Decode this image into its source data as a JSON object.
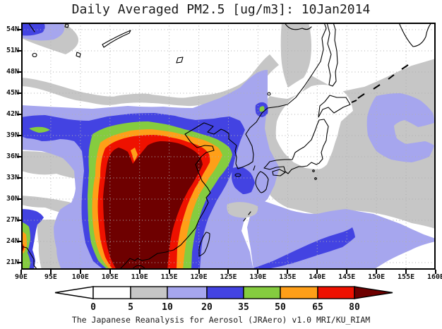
{
  "title": "Daily Averaged PM2.5 [ug/m3]: 10Jan2014",
  "caption": "The Japanese Reanalysis for Aerosol (JRAero) v1.0 MRI/KU_RIAM",
  "axes": {
    "lat_labels": [
      "54N",
      "51N",
      "48N",
      "45N",
      "42N",
      "39N",
      "36N",
      "33N",
      "30N",
      "27N",
      "24N",
      "21N"
    ],
    "lon_labels": [
      "90E",
      "95E",
      "100E",
      "105E",
      "110E",
      "115E",
      "120E",
      "125E",
      "130E",
      "135E",
      "140E",
      "145E",
      "150E",
      "155E",
      "160E"
    ]
  },
  "colorbar": {
    "tick_labels": [
      "0",
      "5",
      "10",
      "20",
      "35",
      "50",
      "65",
      "80"
    ],
    "segment_colors": [
      "#ffffff",
      "#c6c6c6",
      "#a6a6ee",
      "#4343e2",
      "#85cc3f",
      "#ff9f18",
      "#ee1100",
      "#6e0000"
    ],
    "left_arrow_color": "#ffffff",
    "right_arrow_color": "#6e0000"
  },
  "palette": {
    "white": "#ffffff",
    "gray": "#c6c6c6",
    "lavender": "#a6a6ee",
    "blue": "#4343e2",
    "green": "#85cc3f",
    "orange": "#ff9f18",
    "red": "#ee1100",
    "darkred": "#6e0000",
    "coast": "#000000",
    "grid": "#b0b0b0"
  },
  "chart_data": {
    "type": "heatmap",
    "title": "Daily Averaged PM2.5 [ug/m3]: 10Jan2014",
    "variable": "PM2.5",
    "units": "ug/m3",
    "date_label": "10Jan2014",
    "projection": "lat-lon filled contour map (East Asia)",
    "lon_range_deg_east": [
      90,
      160
    ],
    "lat_range_deg_north": [
      20,
      55
    ],
    "lon_ticks": [
      90,
      95,
      100,
      105,
      110,
      115,
      120,
      125,
      130,
      135,
      140,
      145,
      150,
      155,
      160
    ],
    "lat_ticks": [
      21,
      24,
      27,
      30,
      33,
      36,
      39,
      42,
      45,
      48,
      51,
      54
    ],
    "grid": true,
    "legend_position": "bottom",
    "contour_levels": [
      0,
      5,
      10,
      20,
      35,
      50,
      65,
      80
    ],
    "level_colors": [
      "#ffffff",
      "#c6c6c6",
      "#a6a6ee",
      "#4343e2",
      "#85cc3f",
      "#ff9f18",
      "#ee1100",
      "#6e0000"
    ],
    "regions": [
      {
        "label": ">80 ug/m3 severe plume",
        "bounds_lon": [
          104,
          121
        ],
        "bounds_lat": [
          20,
          38
        ],
        "note": "dark-red core over eastern/central China ringed by 65-80 red, 50-65 orange, 35-50 green, 20-35 blue bands; NE lobe reaches Yellow Sea ~124E,36N"
      },
      {
        "label": "20-35 ug/m3 band",
        "bounds_lon": [
          90,
          105
        ],
        "bounds_lat": [
          38,
          42
        ],
        "note": "zonal blue band with small green sliver near 92-95E,40N"
      },
      {
        "label": "50-80+ ug/m3 west-edge plume",
        "bounds_lon": [
          90,
          92.5
        ],
        "bounds_lat": [
          20,
          28
        ],
        "note": "small concentric plume at 90E map edge (orange/red/dark-red slivers)"
      },
      {
        "label": "20-50 ug/m3 spot",
        "bounds_lon": [
          129.7,
          131.8
        ],
        "bounds_lat": [
          41.6,
          43.7
        ],
        "note": "blue spot with green center near Vladivostok"
      },
      {
        "label": "20-35 ug/m3 offshore streak",
        "bounds_lon": [
          121,
          146.5
        ],
        "bounds_lat": [
          20,
          26.5
        ],
        "note": "diagonal blue streak over subtropical NW Pacific"
      },
      {
        "label": "10-20 ug/m3 lavender",
        "note": "Korea, Yellow/East China Seas, SE China waters, Pacific band 21-28N to 160E, patch 149-160E 35-45N"
      },
      {
        "label": "5-10 ug/m3 gray",
        "note": "broad areas: NW bands, Tibet fringes, Sea of Japan, mid-Pacific"
      },
      {
        "label": "<5 ug/m3 white",
        "note": "Mongolia/Siberia, Tibetan Plateau, northern Japan/Sakhalin/Okhotsk, far SE corner"
      }
    ],
    "footer": "The Japanese Reanalysis for Aerosol (JRAero) v1.0 MRI/KU_RIAM"
  }
}
